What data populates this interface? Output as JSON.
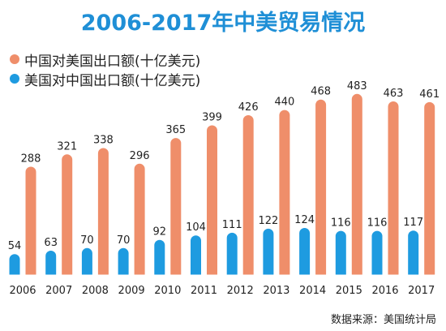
{
  "chart_data": {
    "type": "bar",
    "title": "2006-2017年中美贸易情况",
    "categories": [
      "2006",
      "2007",
      "2008",
      "2009",
      "2010",
      "2011",
      "2012",
      "2013",
      "2014",
      "2015",
      "2016",
      "2017"
    ],
    "series": [
      {
        "name": "中国对美国出口额(十亿美元)",
        "color": "#ef8e6a",
        "values": [
          288,
          321,
          338,
          296,
          365,
          399,
          426,
          440,
          468,
          483,
          463,
          461
        ]
      },
      {
        "name": "美国对中国出口额(十亿美元)",
        "color": "#1e9be0",
        "values": [
          54,
          63,
          70,
          70,
          92,
          104,
          111,
          122,
          124,
          116,
          116,
          117
        ]
      }
    ],
    "ylim": [
      0,
      500
    ],
    "grid": false,
    "legend": "top-left",
    "source": "数据来源：美国统计局"
  }
}
